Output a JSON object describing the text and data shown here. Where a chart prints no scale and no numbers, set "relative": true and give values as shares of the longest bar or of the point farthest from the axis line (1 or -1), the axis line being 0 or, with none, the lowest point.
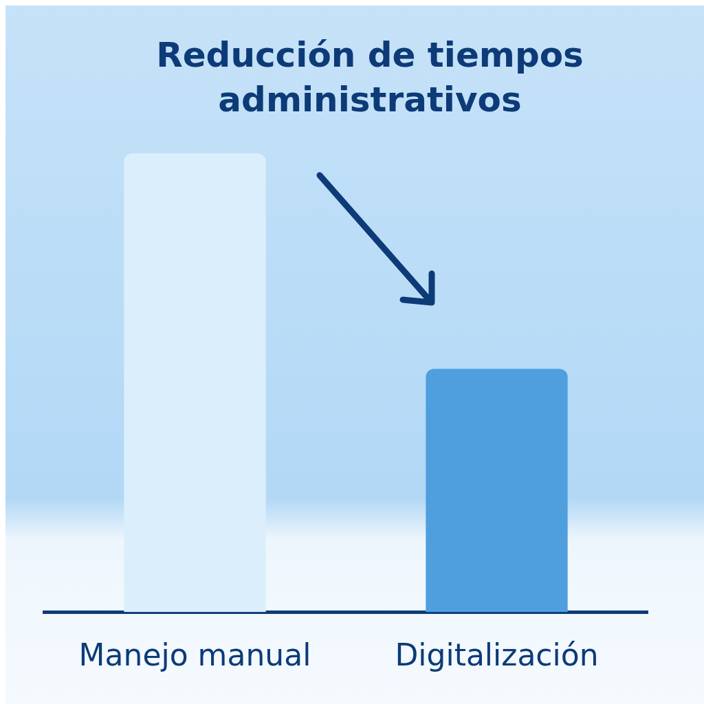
{
  "chart_data": {
    "type": "bar",
    "title": "Reducción de tiempos administrativos",
    "categories": [
      "Manejo manual",
      "Digitalización"
    ],
    "values": [
      1,
      0.53
    ],
    "colors": [
      "#dbeefc",
      "#4f9fdf"
    ],
    "relative": true,
    "grid": false,
    "legend": false
  }
}
